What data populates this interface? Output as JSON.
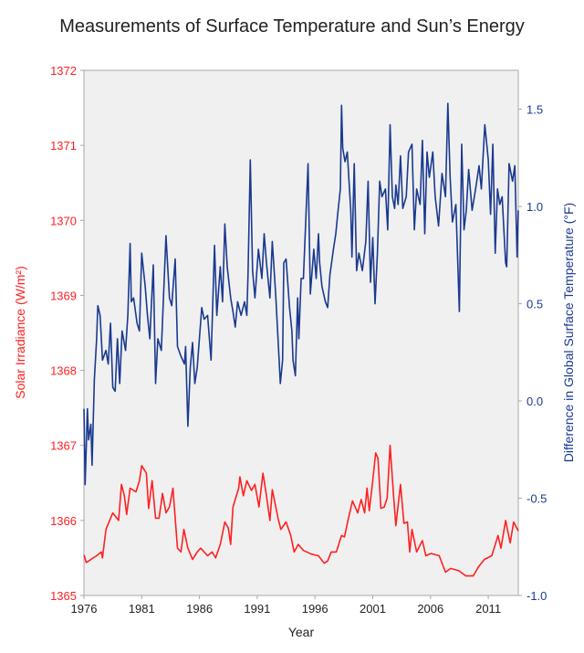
{
  "chart_data": {
    "type": "line",
    "title": "Measurements of Surface Temperature and Sun’s Energy",
    "xlabel": "Year",
    "ylabel_left": "Solar Irradiance (W/m²)",
    "ylabel_right": "Difference in Global Surface Temperature (°F)",
    "xlim": [
      1976,
      2013.6
    ],
    "ylim_left": [
      1365,
      1372
    ],
    "ylim_right": [
      -1.0,
      1.7
    ],
    "x_ticks": [
      1976,
      1981,
      1986,
      1991,
      1996,
      2001,
      2006,
      2011
    ],
    "x_tick_labels": [
      "1976",
      "1981",
      "1986",
      "1991",
      "1996",
      "2001",
      "2006",
      "2011"
    ],
    "left_ticks": [
      1365,
      1366,
      1367,
      1368,
      1369,
      1370,
      1371,
      1372
    ],
    "left_tick_labels": [
      "1365",
      "1366",
      "1367",
      "1368",
      "1369",
      "1370",
      "1371",
      "1372"
    ],
    "right_ticks": [
      -1.0,
      -0.5,
      0.0,
      0.5,
      1.0,
      1.5
    ],
    "right_tick_labels": [
      "-1.0",
      "-0.5",
      "0.0",
      "0.5",
      "1.0",
      "1.5"
    ],
    "grid": false,
    "colors": {
      "solar": "#ff2020",
      "temperature": "#1a3a8f",
      "plot_background": "#f0f0f0",
      "axis": "#a8a8a8"
    },
    "series": [
      {
        "axis": "left",
        "x": [
          1976.0,
          1976.2,
          1977.1,
          1977.5,
          1977.6,
          1977.9,
          1978.5,
          1979.0,
          1979.25,
          1979.5,
          1979.7,
          1980.0,
          1980.5,
          1980.8,
          1981.0,
          1981.4,
          1981.6,
          1981.9,
          1982.2,
          1982.5,
          1982.8,
          1983.1,
          1983.4,
          1983.7,
          1984.1,
          1984.4,
          1984.65,
          1985.0,
          1985.4,
          1985.8,
          1986.1,
          1986.7,
          1987.1,
          1987.4,
          1987.8,
          1988.2,
          1988.5,
          1988.7,
          1988.9,
          1989.4,
          1989.5,
          1989.8,
          1990.1,
          1990.5,
          1990.8,
          1991.15,
          1991.5,
          1991.8,
          1992.1,
          1992.3,
          1992.8,
          1993.05,
          1993.5,
          1993.9,
          1994.2,
          1994.55,
          1995.0,
          1995.7,
          1996.3,
          1996.8,
          1997.1,
          1997.4,
          1997.85,
          1998.3,
          1998.55,
          1998.85,
          1999.25,
          1999.7,
          2000.0,
          2000.3,
          2000.5,
          2000.7,
          2001.0,
          2001.25,
          2001.45,
          2001.7,
          2002.0,
          2002.25,
          2002.5,
          2002.8,
          2003.0,
          2003.4,
          2003.7,
          2004.0,
          2004.2,
          2004.4,
          2004.8,
          2005.3,
          2005.6,
          2006.05,
          2006.75,
          2007.3,
          2007.75,
          2008.45,
          2009.05,
          2009.7,
          2010.15,
          2010.65,
          2011.3,
          2011.85,
          2012.1,
          2012.5,
          2012.9,
          2013.2,
          2013.6
        ],
        "values": [
          1365.54,
          1365.44,
          1365.53,
          1365.58,
          1365.5,
          1365.88,
          1366.1,
          1366.0,
          1366.48,
          1366.33,
          1366.08,
          1366.43,
          1366.38,
          1366.53,
          1366.73,
          1366.63,
          1366.16,
          1366.53,
          1366.03,
          1366.03,
          1366.36,
          1366.1,
          1366.18,
          1366.43,
          1365.63,
          1365.58,
          1365.88,
          1365.63,
          1365.48,
          1365.58,
          1365.63,
          1365.53,
          1365.58,
          1365.5,
          1365.68,
          1365.98,
          1365.9,
          1365.68,
          1366.18,
          1366.43,
          1366.58,
          1366.33,
          1366.53,
          1366.4,
          1366.48,
          1366.18,
          1366.63,
          1366.33,
          1366.0,
          1366.41,
          1366.03,
          1365.88,
          1365.98,
          1365.8,
          1365.58,
          1365.68,
          1365.6,
          1365.55,
          1365.53,
          1365.43,
          1365.46,
          1365.58,
          1365.58,
          1365.8,
          1365.78,
          1366.0,
          1366.26,
          1366.1,
          1366.28,
          1366.1,
          1366.43,
          1366.13,
          1366.53,
          1366.9,
          1366.83,
          1366.16,
          1366.18,
          1366.3,
          1367.0,
          1366.33,
          1365.93,
          1366.48,
          1365.96,
          1365.98,
          1365.58,
          1365.88,
          1365.58,
          1365.73,
          1365.53,
          1365.56,
          1365.53,
          1365.31,
          1365.36,
          1365.33,
          1365.26,
          1365.26,
          1365.38,
          1365.48,
          1365.53,
          1365.8,
          1365.63,
          1366.0,
          1365.7,
          1365.98,
          1365.86
        ]
      },
      {
        "axis": "right",
        "x": [
          1976.0,
          1976.1,
          1976.3,
          1976.4,
          1976.6,
          1976.7,
          1976.9,
          1977.1,
          1977.2,
          1977.4,
          1977.6,
          1977.9,
          1978.1,
          1978.3,
          1978.5,
          1978.7,
          1978.9,
          1979.1,
          1979.3,
          1979.6,
          1979.8,
          1980.0,
          1980.1,
          1980.3,
          1980.6,
          1980.8,
          1981.0,
          1981.3,
          1981.5,
          1981.7,
          1982.0,
          1982.2,
          1982.4,
          1982.7,
          1983.1,
          1983.4,
          1983.6,
          1983.9,
          1984.1,
          1984.4,
          1984.7,
          1984.8,
          1985.0,
          1985.2,
          1985.4,
          1985.6,
          1985.8,
          1986.2,
          1986.4,
          1986.7,
          1987.0,
          1987.3,
          1987.5,
          1987.8,
          1988.0,
          1988.2,
          1988.4,
          1988.7,
          1988.9,
          1989.1,
          1989.3,
          1989.6,
          1989.9,
          1990.1,
          1990.2,
          1990.4,
          1990.6,
          1990.8,
          1991.1,
          1991.4,
          1991.6,
          1991.8,
          1992.1,
          1992.3,
          1992.6,
          1992.9,
          1993.0,
          1993.2,
          1993.3,
          1993.5,
          1993.8,
          1994.0,
          1994.1,
          1994.3,
          1994.5,
          1994.6,
          1994.8,
          1995.0,
          1995.4,
          1995.6,
          1995.9,
          1996.1,
          1996.3,
          1996.4,
          1996.6,
          1996.9,
          1997.1,
          1997.3,
          1997.6,
          1997.8,
          1998.0,
          1998.2,
          1998.3,
          1998.4,
          1998.6,
          1998.8,
          1999.1,
          1999.2,
          1999.4,
          1999.6,
          1999.8,
          2000.1,
          2000.4,
          2000.6,
          2000.8,
          2001.0,
          2001.2,
          2001.4,
          2001.6,
          2001.8,
          2002.1,
          2002.3,
          2002.5,
          2002.7,
          2002.9,
          2003.0,
          2003.2,
          2003.4,
          2003.6,
          2003.9,
          2004.1,
          2004.4,
          2004.6,
          2004.8,
          2005.1,
          2005.3,
          2005.5,
          2005.7,
          2005.9,
          2006.2,
          2006.4,
          2006.7,
          2007.0,
          2007.3,
          2007.5,
          2007.7,
          2007.9,
          2008.2,
          2008.5,
          2008.7,
          2008.9,
          2009.1,
          2009.3,
          2009.6,
          2009.9,
          2010.2,
          2010.4,
          2010.7,
          2011.0,
          2011.2,
          2011.4,
          2011.6,
          2011.8,
          2012.0,
          2012.2,
          2012.5,
          2012.6,
          2012.8,
          2013.1,
          2013.3,
          2013.5,
          2013.6
        ],
        "values": [
          -0.04,
          -0.43,
          -0.04,
          -0.2,
          -0.12,
          -0.33,
          0.11,
          0.32,
          0.49,
          0.44,
          0.21,
          0.26,
          0.19,
          0.4,
          0.07,
          0.05,
          0.32,
          0.09,
          0.36,
          0.26,
          0.44,
          0.81,
          0.51,
          0.53,
          0.4,
          0.36,
          0.76,
          0.59,
          0.44,
          0.32,
          0.7,
          0.09,
          0.32,
          0.26,
          0.85,
          0.53,
          0.49,
          0.73,
          0.28,
          0.23,
          0.19,
          0.28,
          -0.13,
          0.17,
          0.3,
          0.09,
          0.17,
          0.48,
          0.42,
          0.44,
          0.21,
          0.8,
          0.44,
          0.69,
          0.51,
          0.91,
          0.69,
          0.53,
          0.46,
          0.38,
          0.51,
          0.44,
          0.51,
          0.44,
          0.65,
          1.24,
          0.67,
          0.53,
          0.78,
          0.63,
          0.86,
          0.71,
          0.53,
          0.82,
          0.55,
          0.21,
          0.09,
          0.21,
          0.71,
          0.73,
          0.48,
          0.36,
          0.21,
          0.13,
          0.53,
          0.32,
          0.63,
          0.63,
          1.22,
          0.55,
          0.78,
          0.63,
          0.86,
          0.71,
          0.59,
          0.51,
          0.48,
          0.65,
          0.78,
          0.86,
          0.98,
          1.09,
          1.52,
          1.3,
          1.23,
          1.28,
          0.98,
          0.74,
          1.22,
          0.67,
          0.76,
          0.67,
          0.82,
          1.13,
          0.61,
          0.84,
          0.5,
          0.76,
          1.13,
          1.05,
          1.09,
          0.88,
          1.42,
          1.05,
          0.99,
          1.11,
          1.01,
          1.26,
          0.99,
          1.05,
          1.28,
          1.32,
          0.88,
          1.09,
          1.01,
          1.34,
          0.86,
          1.28,
          1.15,
          1.28,
          1.05,
          0.9,
          1.17,
          1.05,
          1.53,
          1.15,
          0.92,
          1.01,
          0.46,
          1.32,
          0.88,
          0.98,
          1.19,
          0.98,
          1.09,
          1.21,
          1.09,
          1.42,
          1.24,
          0.96,
          1.32,
          0.76,
          1.09,
          1.01,
          1.05,
          0.71,
          0.69,
          1.22,
          1.13,
          1.21,
          0.74,
          0.98
        ]
      }
    ]
  }
}
